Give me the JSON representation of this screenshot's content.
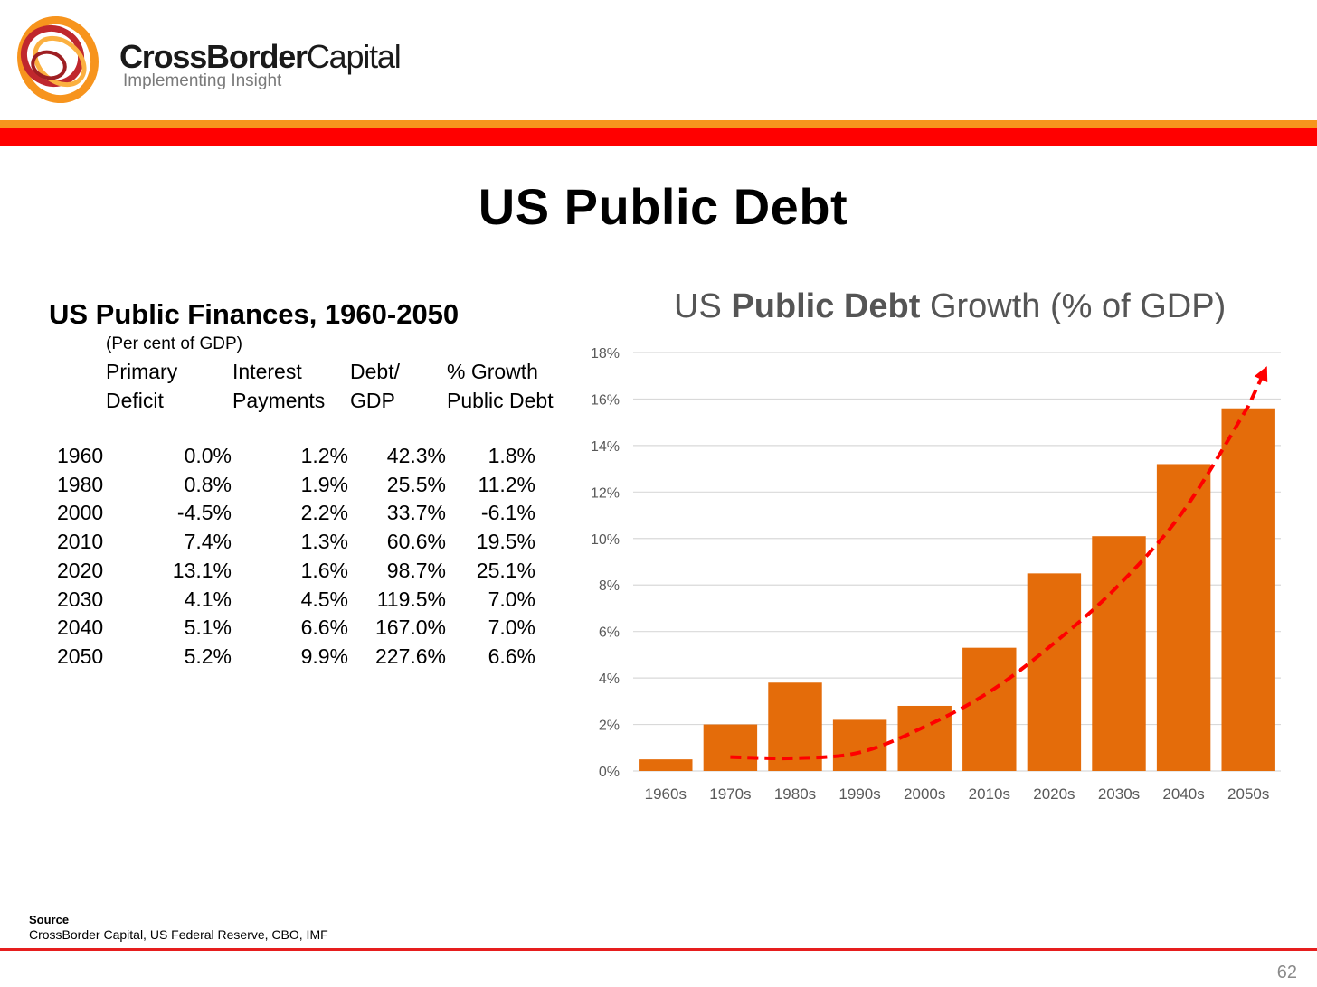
{
  "brand": {
    "name_bold": "CrossBorder",
    "name_light": "Capital",
    "tagline": "Implementing Insight"
  },
  "page_title": "US Public Debt",
  "table": {
    "title": "US Public Finances, 1960-2050",
    "subtitle": "(Per cent of GDP)",
    "headers": [
      [
        "Primary",
        "Deficit"
      ],
      [
        "Interest",
        "Payments"
      ],
      [
        "Debt/",
        "GDP"
      ],
      [
        "% Growth",
        "Public Debt"
      ]
    ],
    "rows": [
      {
        "year": "1960",
        "values": [
          "0.0%",
          "1.2%",
          "42.3%",
          "1.8%"
        ]
      },
      {
        "year": "1980",
        "values": [
          "0.8%",
          "1.9%",
          "25.5%",
          "11.2%"
        ]
      },
      {
        "year": "2000",
        "values": [
          "-4.5%",
          "2.2%",
          "33.7%",
          "-6.1%"
        ]
      },
      {
        "year": "2010",
        "values": [
          "7.4%",
          "1.3%",
          "60.6%",
          "19.5%"
        ]
      },
      {
        "year": "2020",
        "values": [
          "13.1%",
          "1.6%",
          "98.7%",
          "25.1%"
        ]
      },
      {
        "year": "2030",
        "values": [
          "4.1%",
          "4.5%",
          "119.5%",
          "7.0%"
        ]
      },
      {
        "year": "2040",
        "values": [
          "5.1%",
          "6.6%",
          "167.0%",
          "7.0%"
        ]
      },
      {
        "year": "2050",
        "values": [
          "5.2%",
          "9.9%",
          "227.6%",
          "6.6%"
        ]
      }
    ]
  },
  "chart_title": {
    "prefix": "US ",
    "bold": "Public Debt",
    "suffix": " Growth (% of GDP)"
  },
  "chart_data": {
    "type": "bar",
    "title": "US Public Debt Growth (% of GDP)",
    "categories": [
      "1960s",
      "1970s",
      "1980s",
      "1990s",
      "2000s",
      "2010s",
      "2020s",
      "2030s",
      "2040s",
      "2050s"
    ],
    "values": [
      0.5,
      2.0,
      3.8,
      2.2,
      2.8,
      5.3,
      8.5,
      10.1,
      13.2,
      15.6
    ],
    "ylim": [
      0,
      18
    ],
    "yticks": [
      0,
      2,
      4,
      6,
      8,
      10,
      12,
      14,
      16,
      18
    ],
    "ytick_labels": [
      "0%",
      "2%",
      "4%",
      "6%",
      "8%",
      "10%",
      "12%",
      "14%",
      "16%",
      "18%"
    ],
    "grid": true,
    "bar_color": "#e46c0a",
    "trend": {
      "style": "dashed-arrow",
      "color": "#ff0000",
      "points": [
        {
          "x": "1970s",
          "y": 0.6
        },
        {
          "x": "1980s",
          "y": 0.55
        },
        {
          "x": "1990s",
          "y": 0.8
        },
        {
          "x": "2000s",
          "y": 1.9
        },
        {
          "x": "2010s",
          "y": 3.4
        },
        {
          "x": "2020s",
          "y": 5.5
        },
        {
          "x": "2030s",
          "y": 8.0
        },
        {
          "x": "2040s",
          "y": 11.2
        },
        {
          "x": "2050s",
          "y": 15.7
        }
      ],
      "arrow_end": {
        "x": "2050s",
        "y": 17.2
      }
    }
  },
  "source": {
    "label": "Source",
    "text": "CrossBorder Capital, US Federal Reserve, CBO, IMF"
  },
  "page_number": "62"
}
